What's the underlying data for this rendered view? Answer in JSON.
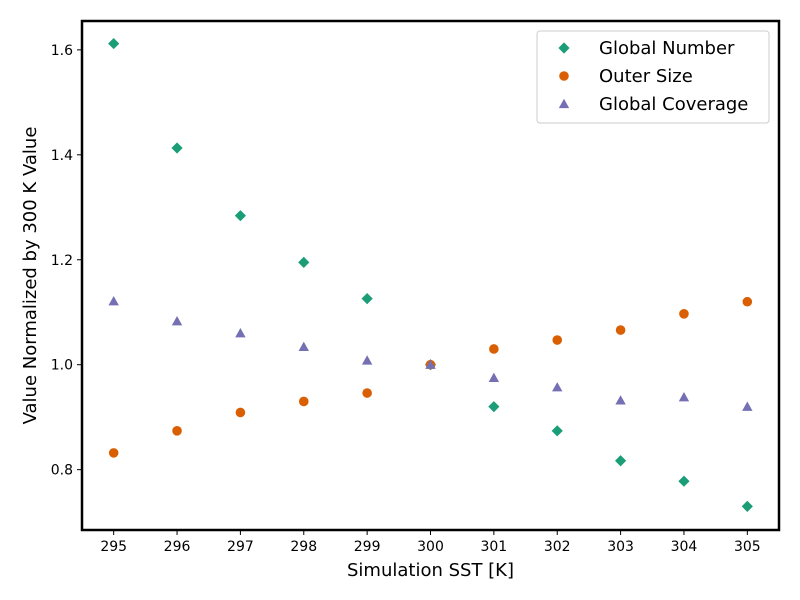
{
  "chart_data": {
    "type": "scatter",
    "title": "",
    "xlabel": "Simulation SST [K]",
    "ylabel": "Value Normalized by 300 K Value",
    "xlim": [
      294.5,
      305.5
    ],
    "ylim": [
      0.685,
      1.655
    ],
    "x_ticks": [
      295,
      296,
      297,
      298,
      299,
      300,
      301,
      302,
      303,
      304,
      305
    ],
    "y_ticks": [
      0.8,
      1.0,
      1.2,
      1.4,
      1.6
    ],
    "grid": false,
    "legend_position": "top-right",
    "x": [
      295,
      296,
      297,
      298,
      299,
      300,
      301,
      302,
      303,
      304,
      305
    ],
    "series": [
      {
        "name": "Global Number",
        "marker": "diamond",
        "color": "#1b9e77",
        "values": [
          1.612,
          1.413,
          1.284,
          1.195,
          1.126,
          1.0,
          0.92,
          0.874,
          0.817,
          0.778,
          0.73
        ]
      },
      {
        "name": "Outer Size",
        "marker": "circle",
        "color": "#d95f02",
        "values": [
          0.832,
          0.874,
          0.909,
          0.93,
          0.946,
          1.0,
          1.03,
          1.047,
          1.066,
          1.097,
          1.12
        ]
      },
      {
        "name": "Global Coverage",
        "marker": "triangle",
        "color": "#7570b3",
        "values": [
          1.121,
          1.083,
          1.06,
          1.034,
          1.008,
          1.0,
          0.975,
          0.957,
          0.932,
          0.938,
          0.92
        ]
      }
    ]
  }
}
